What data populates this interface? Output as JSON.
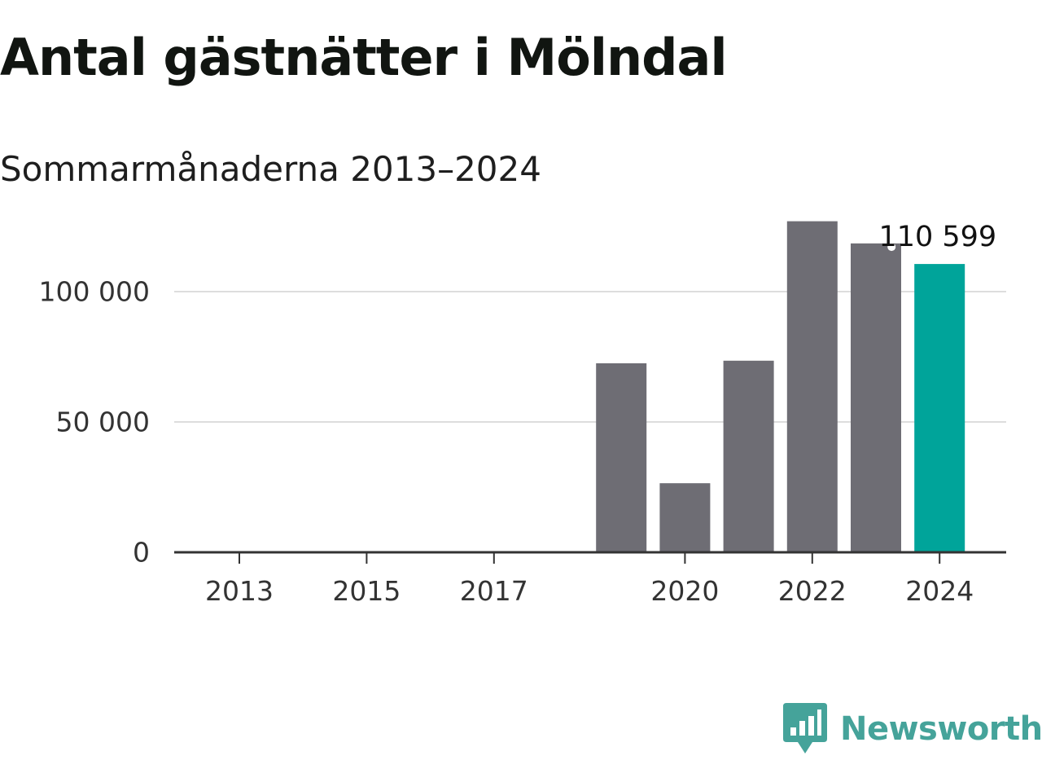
{
  "chart_data": {
    "type": "bar",
    "title": "Antal gästnätter i Mölndal",
    "subtitle": "Sommarmånaderna 2013–2024",
    "xlabel": "",
    "ylabel": "",
    "categories": [
      "2013",
      "2014",
      "2015",
      "2016",
      "2017",
      "2018",
      "2019",
      "2020",
      "2021",
      "2022",
      "2023",
      "2024"
    ],
    "values": [
      null,
      null,
      null,
      null,
      null,
      null,
      72500,
      26500,
      73500,
      127000,
      118500,
      110599
    ],
    "x_tick_labels": [
      "2013",
      "2015",
      "2017",
      "2020",
      "2022",
      "2024"
    ],
    "y_ticks": [
      0,
      50000,
      100000
    ],
    "y_tick_labels": [
      "0",
      "50 000",
      "100 000"
    ],
    "ylim": [
      0,
      130000
    ],
    "grid": true,
    "highlight": {
      "category": "2024",
      "label": "110 599"
    },
    "colors": {
      "bar": "#6e6d74",
      "highlight": "#00a49a",
      "grid": "#dddddd",
      "axis": "#333333",
      "text": "#333333"
    }
  },
  "brand": {
    "name": "Newsworthy",
    "icon": "newsworthy-logo-icon",
    "color": "#45a39a"
  }
}
